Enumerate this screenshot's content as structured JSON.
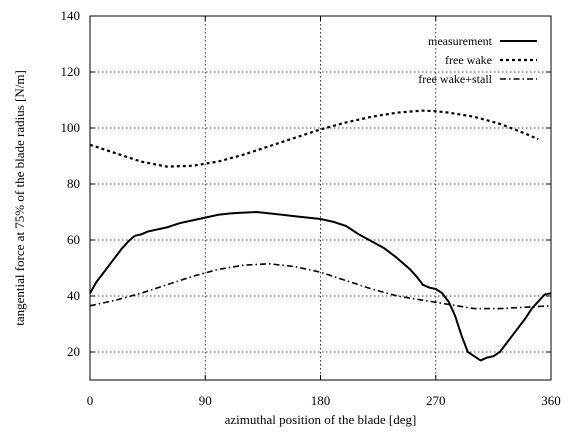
{
  "chart_data": {
    "type": "line",
    "xlabel": "azimuthal position of the blade [deg]",
    "ylabel": "tangential force at 75% of the blade radius [N/m]",
    "xlim": [
      0,
      360
    ],
    "ylim": [
      10,
      140
    ],
    "xticks": [
      0,
      90,
      180,
      270,
      360
    ],
    "yticks": [
      20,
      40,
      60,
      80,
      100,
      120,
      140
    ],
    "grid": true,
    "legend_position": "top-right",
    "series": [
      {
        "name": "measurement",
        "style": "solid",
        "color": "#000000",
        "x": [
          0,
          5,
          10,
          15,
          20,
          25,
          30,
          35,
          40,
          45,
          50,
          60,
          70,
          80,
          90,
          100,
          110,
          120,
          130,
          140,
          150,
          160,
          170,
          180,
          190,
          200,
          210,
          220,
          230,
          240,
          250,
          255,
          260,
          265,
          270,
          275,
          280,
          285,
          290,
          295,
          300,
          305,
          310,
          315,
          320,
          325,
          330,
          335,
          340,
          345,
          350,
          355,
          360
        ],
        "y": [
          41,
          45,
          48,
          51,
          54,
          57,
          59.5,
          61.5,
          62,
          63,
          63.5,
          64.5,
          66,
          67,
          68,
          69,
          69.5,
          69.8,
          70,
          69.5,
          69,
          68.5,
          68,
          67.5,
          66.5,
          65,
          62,
          59.5,
          57,
          53.5,
          49.5,
          47,
          44,
          43,
          42.5,
          41,
          38,
          33,
          26,
          20,
          18.5,
          17,
          18,
          18.5,
          20,
          23,
          26,
          29,
          32,
          35.5,
          38,
          40.5,
          41
        ]
      },
      {
        "name": "free wake",
        "style": "dashed",
        "color": "#000000",
        "x": [
          0,
          20,
          40,
          60,
          80,
          100,
          120,
          140,
          160,
          180,
          200,
          220,
          240,
          260,
          270,
          280,
          300,
          320,
          340,
          350
        ],
        "y": [
          94,
          91,
          88,
          86.2,
          86.5,
          88,
          90.5,
          93.5,
          96.5,
          99.5,
          102,
          104,
          105.5,
          106.2,
          106,
          105.5,
          104,
          101.5,
          98,
          96
        ]
      },
      {
        "name": "free wake+stall",
        "style": "dashdot",
        "color": "#000000",
        "x": [
          0,
          20,
          40,
          60,
          80,
          100,
          120,
          140,
          160,
          180,
          200,
          220,
          240,
          260,
          280,
          300,
          320,
          340,
          360
        ],
        "y": [
          36.5,
          38.5,
          41,
          44,
          47,
          49.5,
          51,
          51.5,
          50.5,
          48.5,
          45.5,
          42.5,
          40,
          38.5,
          37,
          35.5,
          35.5,
          36,
          36.5
        ]
      }
    ]
  }
}
